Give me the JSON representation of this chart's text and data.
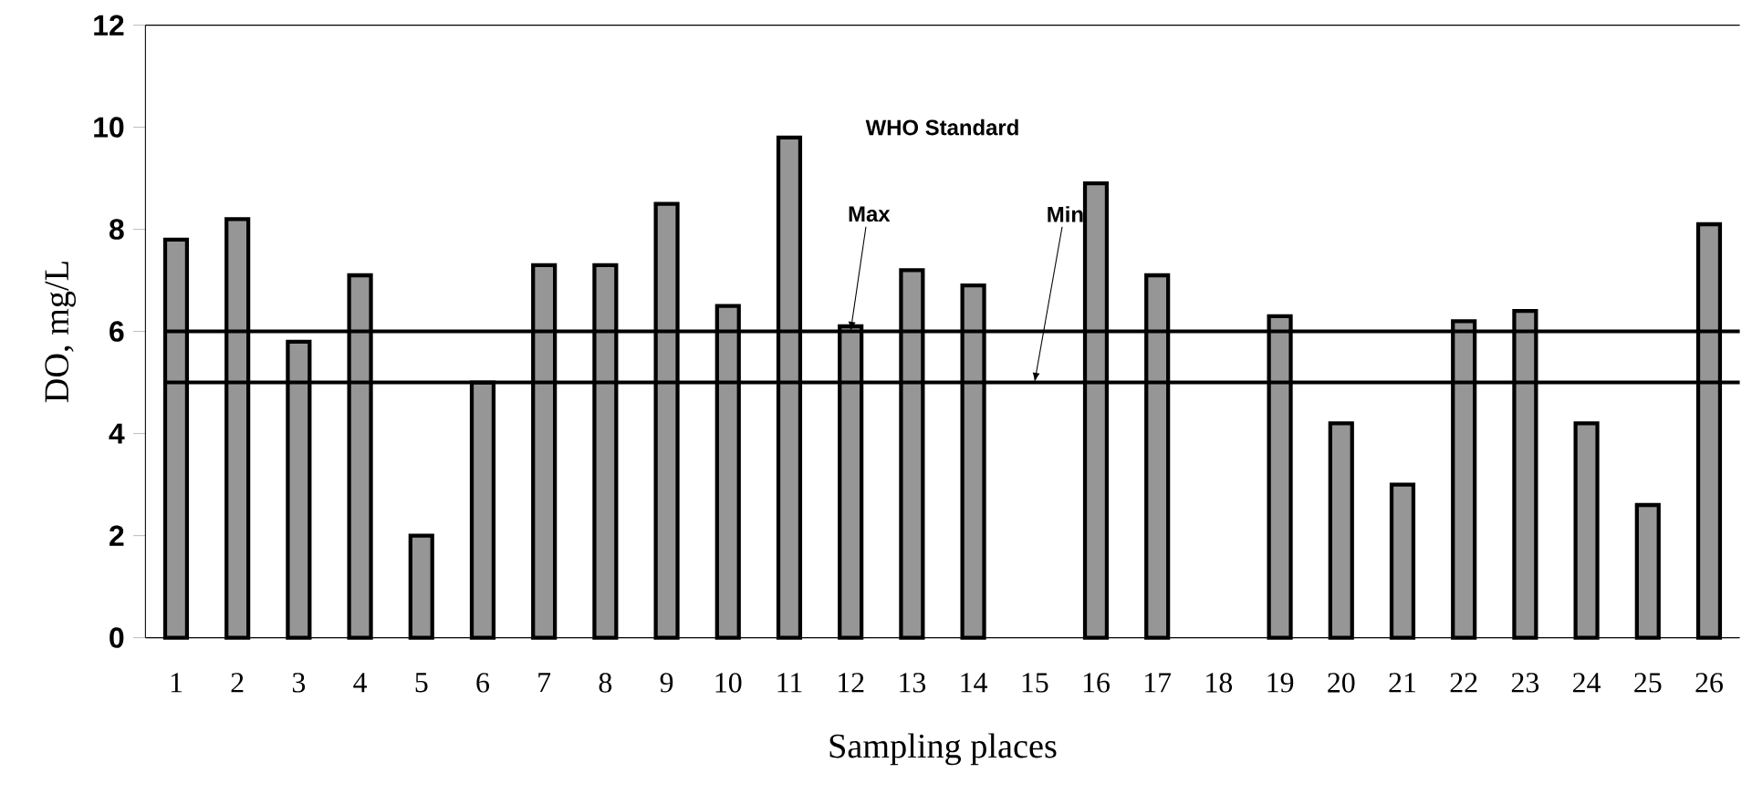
{
  "chart_data": {
    "type": "bar",
    "xlabel": "Sampling places",
    "ylabel": "DO, mg/L",
    "categories": [
      "1",
      "2",
      "3",
      "4",
      "5",
      "6",
      "7",
      "8",
      "9",
      "10",
      "11",
      "12",
      "13",
      "14",
      "15",
      "16",
      "17",
      "18",
      "19",
      "20",
      "21",
      "22",
      "23",
      "24",
      "25",
      "26"
    ],
    "values": [
      7.8,
      8.2,
      5.8,
      7.1,
      2.0,
      5.0,
      7.3,
      7.3,
      8.5,
      6.5,
      9.8,
      6.1,
      7.2,
      6.9,
      null,
      8.9,
      7.1,
      null,
      6.3,
      4.2,
      3.0,
      6.2,
      6.4,
      4.2,
      2.6,
      8.1
    ],
    "color": "#969696",
    "ylim": [
      0,
      12
    ],
    "yticks": [
      0,
      2,
      4,
      6,
      8,
      10,
      12
    ],
    "ref_lines": [
      {
        "axis": "y",
        "value": 6,
        "color": "#000000"
      },
      {
        "axis": "y",
        "value": 5,
        "color": "#000000"
      }
    ],
    "annotations": [
      "WHO Standard",
      {
        "text": "Max",
        "x": "12",
        "y": 6
      },
      {
        "text": "Min",
        "x": "15",
        "y": 5
      }
    ],
    "grid": false
  }
}
